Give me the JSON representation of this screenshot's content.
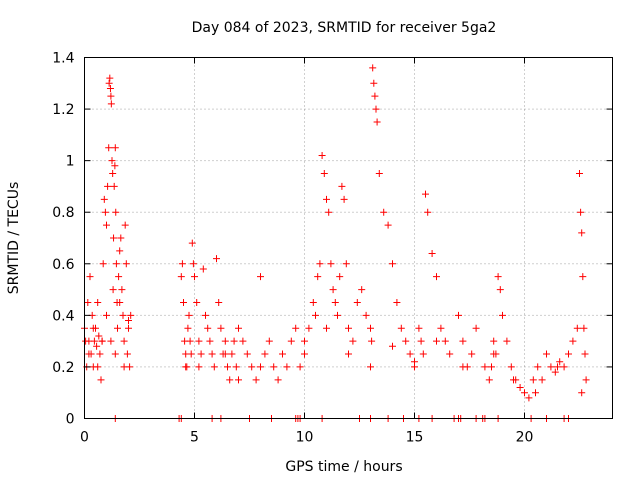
{
  "chart_data": {
    "type": "scatter",
    "title": "Day 084 of 2023, SRMTID for receiver 5ga2",
    "xlabel": "GPS time / hours",
    "ylabel": "SRMTID / TECUs",
    "xlim": [
      0,
      24
    ],
    "ylim": [
      0,
      1.4
    ],
    "xticks": [
      0,
      5,
      10,
      15,
      20
    ],
    "yticks": [
      0,
      0.2,
      0.4,
      0.6,
      0.8,
      1,
      1.2,
      1.4
    ],
    "grid": true,
    "marker": "plus",
    "color": "#ff0000",
    "series": [
      {
        "name": "SRMTID",
        "x": [
          0.0,
          0.1,
          0.15,
          0.2,
          0.25,
          0.3,
          0.35,
          0.4,
          0.45,
          0.5,
          0.55,
          0.6,
          0.65,
          0.7,
          0.75,
          0.8,
          0.85,
          0.9,
          0.95,
          1.0,
          1.05,
          1.1,
          1.12,
          1.15,
          1.18,
          1.2,
          1.22,
          1.25,
          1.28,
          1.3,
          1.32,
          1.35,
          1.38,
          1.4,
          1.42,
          1.45,
          1.48,
          1.5,
          1.55,
          1.6,
          1.65,
          1.7,
          1.75,
          1.8,
          1.85,
          1.9,
          1.95,
          2.0,
          2.05,
          2.1,
          0.05,
          0.2,
          0.4,
          0.6,
          0.8,
          1.0,
          1.2,
          1.4,
          1.6,
          1.8,
          2.0,
          4.4,
          4.45,
          4.5,
          4.55,
          4.6,
          4.65,
          4.7,
          4.75,
          4.8,
          4.85,
          4.9,
          4.95,
          5.0,
          5.1,
          5.2,
          5.3,
          5.4,
          5.5,
          5.6,
          5.7,
          5.8,
          5.9,
          6.0,
          6.1,
          6.2,
          6.3,
          6.4,
          6.5,
          6.6,
          6.7,
          6.8,
          6.9,
          7.0,
          7.2,
          7.4,
          7.6,
          7.8,
          8.0,
          8.2,
          8.4,
          8.6,
          8.8,
          9.0,
          9.2,
          9.4,
          9.6,
          9.8,
          10.0,
          10.2,
          10.4,
          10.5,
          10.6,
          10.7,
          10.8,
          10.9,
          11.0,
          11.1,
          11.2,
          11.3,
          11.4,
          11.5,
          11.6,
          11.7,
          11.8,
          11.9,
          12.0,
          12.2,
          12.4,
          12.6,
          12.8,
          13.0,
          13.05,
          13.1,
          13.15,
          13.2,
          13.25,
          13.3,
          13.4,
          13.6,
          13.8,
          14.0,
          14.2,
          14.4,
          14.6,
          14.8,
          15.0,
          15.2,
          15.3,
          15.4,
          15.5,
          15.6,
          15.8,
          16.0,
          16.2,
          16.4,
          16.6,
          17.0,
          17.2,
          17.4,
          17.6,
          17.8,
          18.2,
          18.4,
          18.5,
          18.6,
          18.7,
          18.8,
          18.9,
          19.0,
          19.2,
          19.4,
          19.6,
          19.8,
          20.0,
          20.2,
          20.4,
          20.6,
          20.8,
          21.0,
          21.2,
          21.4,
          21.6,
          21.8,
          22.0,
          22.2,
          22.4,
          22.5,
          22.55,
          22.6,
          22.65,
          22.7,
          22.75,
          22.8,
          4.6,
          5.2,
          6.4,
          7.0,
          8.0,
          9.0,
          10.0,
          11.0,
          12.0,
          13.0,
          14.0,
          15.0,
          16.0,
          17.2,
          18.6,
          19.5,
          20.5,
          21.5,
          22.6
        ],
        "y": [
          0.35,
          0.2,
          0.45,
          0.3,
          0.55,
          0.25,
          0.4,
          0.2,
          0.3,
          0.35,
          0.28,
          0.45,
          0.32,
          0.25,
          0.15,
          0.3,
          0.6,
          0.85,
          0.8,
          0.75,
          0.9,
          1.05,
          1.3,
          1.32,
          1.28,
          1.25,
          1.22,
          1.0,
          0.95,
          0.5,
          0.7,
          0.9,
          0.98,
          1.05,
          0.8,
          0.6,
          0.45,
          0.35,
          0.55,
          0.65,
          0.7,
          0.5,
          0.4,
          0.3,
          0.75,
          0.6,
          0.25,
          0.35,
          0.2,
          0.4,
          0.3,
          0.25,
          0.35,
          0.2,
          0.3,
          0.4,
          0.3,
          0.25,
          0.45,
          0.2,
          0.38,
          0.55,
          0.6,
          0.45,
          0.3,
          0.25,
          0.2,
          0.35,
          0.4,
          0.3,
          0.25,
          0.68,
          0.6,
          0.55,
          0.45,
          0.3,
          0.25,
          0.58,
          0.4,
          0.35,
          0.3,
          0.25,
          0.2,
          0.62,
          0.45,
          0.35,
          0.25,
          0.3,
          0.2,
          0.15,
          0.25,
          0.3,
          0.2,
          0.35,
          0.3,
          0.25,
          0.2,
          0.15,
          0.55,
          0.25,
          0.3,
          0.2,
          0.15,
          0.25,
          0.2,
          0.3,
          0.35,
          0.2,
          0.25,
          0.35,
          0.45,
          0.4,
          0.55,
          0.6,
          1.02,
          0.95,
          0.85,
          0.8,
          0.6,
          0.5,
          0.45,
          0.4,
          0.55,
          0.9,
          0.85,
          0.6,
          0.35,
          0.3,
          0.45,
          0.5,
          0.4,
          0.35,
          0.3,
          1.36,
          1.3,
          1.25,
          1.2,
          1.15,
          0.95,
          0.8,
          0.75,
          0.6,
          0.45,
          0.35,
          0.3,
          0.25,
          0.2,
          0.35,
          0.3,
          0.25,
          0.87,
          0.8,
          0.64,
          0.55,
          0.35,
          0.3,
          0.25,
          0.4,
          0.3,
          0.2,
          0.25,
          0.35,
          0.2,
          0.15,
          0.2,
          0.3,
          0.25,
          0.55,
          0.5,
          0.4,
          0.3,
          0.2,
          0.15,
          0.12,
          0.1,
          0.08,
          0.15,
          0.2,
          0.15,
          0.25,
          0.2,
          0.18,
          0.22,
          0.2,
          0.25,
          0.3,
          0.35,
          0.95,
          0.8,
          0.72,
          0.55,
          0.35,
          0.25,
          0.15,
          0.2,
          0.2,
          0.25,
          0.15,
          0.2,
          0.25,
          0.3,
          0.35,
          0.25,
          0.2,
          0.28,
          0.22,
          0.3,
          0.2,
          0.25,
          0.15,
          0.1,
          0.2,
          0.1
        ],
        "zero_marks_x": [
          1.4,
          4.3,
          4.4,
          5.8,
          6.2,
          7.5,
          8.5,
          9.6,
          9.7,
          9.8,
          10.8,
          12.5,
          13.0,
          13.8,
          14.5,
          15.2,
          15.8,
          16.8,
          17.0,
          17.1,
          17.8,
          18.1,
          18.2,
          18.8,
          20.3,
          21.0,
          21.8,
          22.0
        ]
      }
    ]
  }
}
